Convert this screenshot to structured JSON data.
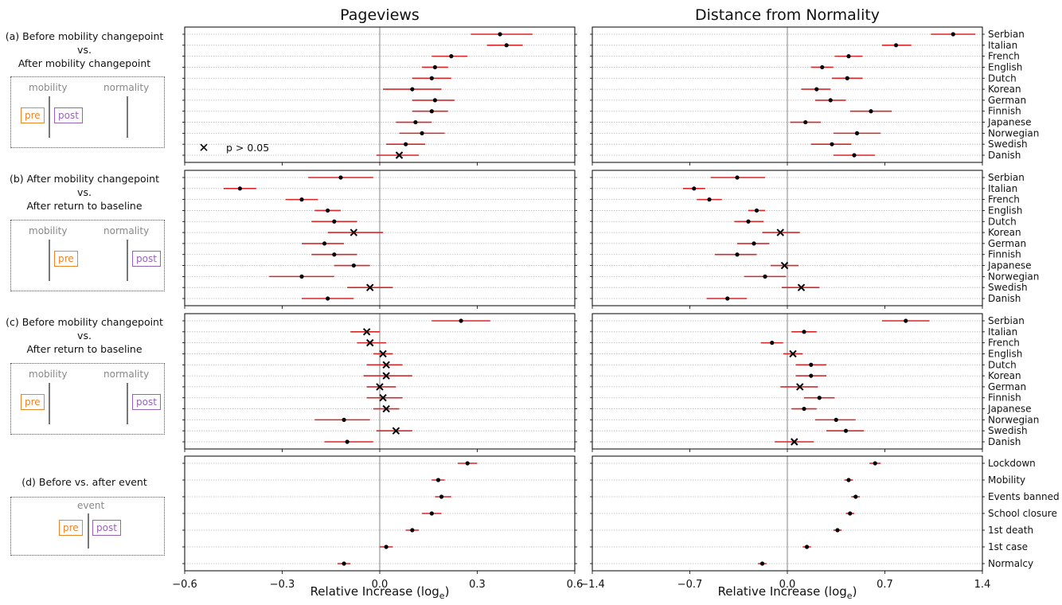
{
  "titles": {
    "left": "Pageviews",
    "right": "Distance from Normality"
  },
  "xlabels": {
    "left_prefix": "Relative Increase (log",
    "right_prefix": "Relative Increase (log",
    "sub": "e",
    "suffix": ")"
  },
  "rows": [
    {
      "id": "a",
      "label_lines": [
        "(a) Before mobility changepoint",
        "vs.",
        "After mobility changepoint"
      ],
      "schematic": {
        "mobility_label": "mobility",
        "normality_label": "normality",
        "pre": "pre",
        "post": "post",
        "variant": "a"
      }
    },
    {
      "id": "b",
      "label_lines": [
        "(b) After mobility changepoint",
        "vs.",
        "After return to baseline"
      ],
      "schematic": {
        "mobility_label": "mobility",
        "normality_label": "normality",
        "pre": "pre",
        "post": "post",
        "variant": "b"
      }
    },
    {
      "id": "c",
      "label_lines": [
        "(c) Before mobility changepoint",
        "vs.",
        "After return to baseline"
      ],
      "schematic": {
        "mobility_label": "mobility",
        "normality_label": "normality",
        "pre": "pre",
        "post": "post",
        "variant": "c"
      }
    },
    {
      "id": "d",
      "label_lines": [
        "(d) Before vs. after event"
      ],
      "schematic": {
        "event_label": "event",
        "pre": "pre",
        "post": "post",
        "variant": "d"
      }
    }
  ],
  "legend": {
    "marker": "×",
    "text": "p > 0.05"
  },
  "colors": {
    "ci": "#d62728",
    "point": "#000000",
    "zero_line": "#999999",
    "grid": "#bbbbbb",
    "pre": "#e8862a",
    "post": "#9563b8"
  },
  "chart_data": [
    {
      "type": "scatter",
      "panel": "a-pageviews",
      "xlim": [
        -0.6,
        0.6
      ],
      "xticks": [
        -0.6,
        -0.3,
        0.0,
        0.3,
        0.6
      ],
      "categories": [
        "Serbian",
        "Italian",
        "French",
        "English",
        "Dutch",
        "Korean",
        "German",
        "Finnish",
        "Japanese",
        "Norwegian",
        "Swedish",
        "Danish"
      ],
      "values": [
        0.37,
        0.39,
        0.22,
        0.17,
        0.16,
        0.1,
        0.17,
        0.16,
        0.11,
        0.13,
        0.08,
        0.06
      ],
      "ci_low": [
        0.28,
        0.33,
        0.16,
        0.13,
        0.1,
        0.01,
        0.1,
        0.1,
        0.05,
        0.06,
        0.02,
        -0.01
      ],
      "ci_high": [
        0.47,
        0.44,
        0.27,
        0.21,
        0.22,
        0.19,
        0.23,
        0.21,
        0.16,
        0.2,
        0.14,
        0.12
      ],
      "not_significant": [
        false,
        false,
        false,
        false,
        false,
        false,
        false,
        false,
        false,
        false,
        false,
        true
      ]
    },
    {
      "type": "scatter",
      "panel": "a-distance",
      "xlim": [
        -1.4,
        1.4
      ],
      "xticks": [
        -1.4,
        -0.7,
        0.0,
        0.7,
        1.4
      ],
      "categories": [
        "Serbian",
        "Italian",
        "French",
        "English",
        "Dutch",
        "Korean",
        "German",
        "Finnish",
        "Japanese",
        "Norwegian",
        "Swedish",
        "Danish"
      ],
      "values": [
        1.19,
        0.78,
        0.44,
        0.25,
        0.43,
        0.21,
        0.31,
        0.6,
        0.13,
        0.5,
        0.32,
        0.48
      ],
      "ci_low": [
        1.03,
        0.68,
        0.34,
        0.17,
        0.32,
        0.1,
        0.2,
        0.45,
        0.02,
        0.33,
        0.17,
        0.33
      ],
      "ci_high": [
        1.35,
        0.89,
        0.54,
        0.33,
        0.54,
        0.31,
        0.42,
        0.75,
        0.24,
        0.67,
        0.46,
        0.63
      ],
      "not_significant": [
        false,
        false,
        false,
        false,
        false,
        false,
        false,
        false,
        false,
        false,
        false,
        false
      ]
    },
    {
      "type": "scatter",
      "panel": "b-pageviews",
      "xlim": [
        -0.6,
        0.6
      ],
      "xticks": [
        -0.6,
        -0.3,
        0.0,
        0.3,
        0.6
      ],
      "categories": [
        "Serbian",
        "Italian",
        "French",
        "English",
        "Dutch",
        "Korean",
        "German",
        "Finnish",
        "Japanese",
        "Norwegian",
        "Swedish",
        "Danish"
      ],
      "values": [
        -0.12,
        -0.43,
        -0.24,
        -0.16,
        -0.14,
        -0.08,
        -0.17,
        -0.14,
        -0.08,
        -0.24,
        -0.03,
        -0.16
      ],
      "ci_low": [
        -0.22,
        -0.48,
        -0.29,
        -0.2,
        -0.21,
        -0.16,
        -0.24,
        -0.21,
        -0.14,
        -0.34,
        -0.1,
        -0.24
      ],
      "ci_high": [
        -0.02,
        -0.38,
        -0.19,
        -0.12,
        -0.07,
        0.01,
        -0.11,
        -0.07,
        -0.03,
        -0.14,
        0.04,
        -0.08
      ],
      "not_significant": [
        false,
        false,
        false,
        false,
        false,
        true,
        false,
        false,
        false,
        false,
        true,
        false
      ]
    },
    {
      "type": "scatter",
      "panel": "b-distance",
      "xlim": [
        -1.4,
        1.4
      ],
      "xticks": [
        -1.4,
        -0.7,
        0.0,
        0.7,
        1.4
      ],
      "categories": [
        "Serbian",
        "Italian",
        "French",
        "English",
        "Dutch",
        "Korean",
        "German",
        "Finnish",
        "Japanese",
        "Norwegian",
        "Swedish",
        "Danish"
      ],
      "values": [
        -0.36,
        -0.67,
        -0.56,
        -0.22,
        -0.28,
        -0.05,
        -0.24,
        -0.36,
        -0.02,
        -0.16,
        0.1,
        -0.43
      ],
      "ci_low": [
        -0.55,
        -0.75,
        -0.65,
        -0.28,
        -0.38,
        -0.18,
        -0.36,
        -0.52,
        -0.12,
        -0.31,
        -0.04,
        -0.58
      ],
      "ci_high": [
        -0.16,
        -0.59,
        -0.47,
        -0.16,
        -0.17,
        0.09,
        -0.13,
        -0.22,
        0.08,
        -0.01,
        0.23,
        -0.29
      ],
      "not_significant": [
        false,
        false,
        false,
        false,
        false,
        true,
        false,
        false,
        true,
        false,
        true,
        false
      ]
    },
    {
      "type": "scatter",
      "panel": "c-pageviews",
      "xlim": [
        -0.6,
        0.6
      ],
      "xticks": [
        -0.6,
        -0.3,
        0.0,
        0.3,
        0.6
      ],
      "categories": [
        "Serbian",
        "Italian",
        "French",
        "English",
        "Dutch",
        "Korean",
        "German",
        "Finnish",
        "Japanese",
        "Norwegian",
        "Swedish",
        "Danish"
      ],
      "values": [
        0.25,
        -0.04,
        -0.03,
        0.01,
        0.02,
        0.02,
        0.0,
        0.01,
        0.02,
        -0.11,
        0.05,
        -0.1
      ],
      "ci_low": [
        0.16,
        -0.09,
        -0.07,
        -0.02,
        -0.04,
        -0.05,
        -0.04,
        -0.04,
        -0.02,
        -0.2,
        -0.01,
        -0.17
      ],
      "ci_high": [
        0.34,
        0.0,
        0.02,
        0.04,
        0.07,
        0.1,
        0.05,
        0.07,
        0.06,
        -0.03,
        0.1,
        -0.02
      ],
      "not_significant": [
        false,
        true,
        true,
        true,
        true,
        true,
        true,
        true,
        true,
        false,
        true,
        false
      ]
    },
    {
      "type": "scatter",
      "panel": "c-distance",
      "xlim": [
        -1.4,
        1.4
      ],
      "xticks": [
        -1.4,
        -0.7,
        0.0,
        0.7,
        1.4
      ],
      "categories": [
        "Serbian",
        "Italian",
        "French",
        "English",
        "Dutch",
        "Korean",
        "German",
        "Finnish",
        "Japanese",
        "Norwegian",
        "Swedish",
        "Danish"
      ],
      "values": [
        0.85,
        0.12,
        -0.11,
        0.04,
        0.17,
        0.17,
        0.09,
        0.23,
        0.12,
        0.35,
        0.42,
        0.05
      ],
      "ci_low": [
        0.68,
        0.03,
        -0.19,
        -0.03,
        0.06,
        0.06,
        -0.05,
        0.12,
        0.03,
        0.2,
        0.28,
        -0.09
      ],
      "ci_high": [
        1.02,
        0.21,
        -0.03,
        0.11,
        0.28,
        0.28,
        0.22,
        0.34,
        0.21,
        0.49,
        0.55,
        0.19
      ],
      "not_significant": [
        false,
        false,
        false,
        true,
        false,
        false,
        true,
        false,
        false,
        false,
        false,
        true
      ]
    },
    {
      "type": "scatter",
      "panel": "d-pageviews",
      "xlim": [
        -0.6,
        0.6
      ],
      "xticks": [
        -0.6,
        -0.3,
        0.0,
        0.3,
        0.6
      ],
      "categories": [
        "Lockdown",
        "Mobility",
        "Events banned",
        "School closure",
        "1st death",
        "1st case",
        "Normalcy"
      ],
      "values": [
        0.27,
        0.18,
        0.19,
        0.16,
        0.1,
        0.02,
        -0.11
      ],
      "ci_low": [
        0.24,
        0.16,
        0.17,
        0.13,
        0.08,
        0.0,
        -0.13
      ],
      "ci_high": [
        0.3,
        0.2,
        0.22,
        0.19,
        0.12,
        0.04,
        -0.09
      ],
      "not_significant": [
        false,
        false,
        false,
        false,
        false,
        false,
        false
      ]
    },
    {
      "type": "scatter",
      "panel": "d-distance",
      "xlim": [
        -1.4,
        1.4
      ],
      "xticks": [
        -1.4,
        -0.7,
        0.0,
        0.7,
        1.4
      ],
      "categories": [
        "Lockdown",
        "Mobility",
        "Events banned",
        "School closure",
        "1st death",
        "1st case",
        "Normalcy"
      ],
      "values": [
        0.63,
        0.44,
        0.49,
        0.45,
        0.36,
        0.14,
        -0.18
      ],
      "ci_low": [
        0.59,
        0.41,
        0.46,
        0.42,
        0.33,
        0.11,
        -0.21
      ],
      "ci_high": [
        0.67,
        0.47,
        0.52,
        0.48,
        0.39,
        0.17,
        -0.15
      ],
      "not_significant": [
        false,
        false,
        false,
        false,
        false,
        false,
        false
      ]
    }
  ]
}
